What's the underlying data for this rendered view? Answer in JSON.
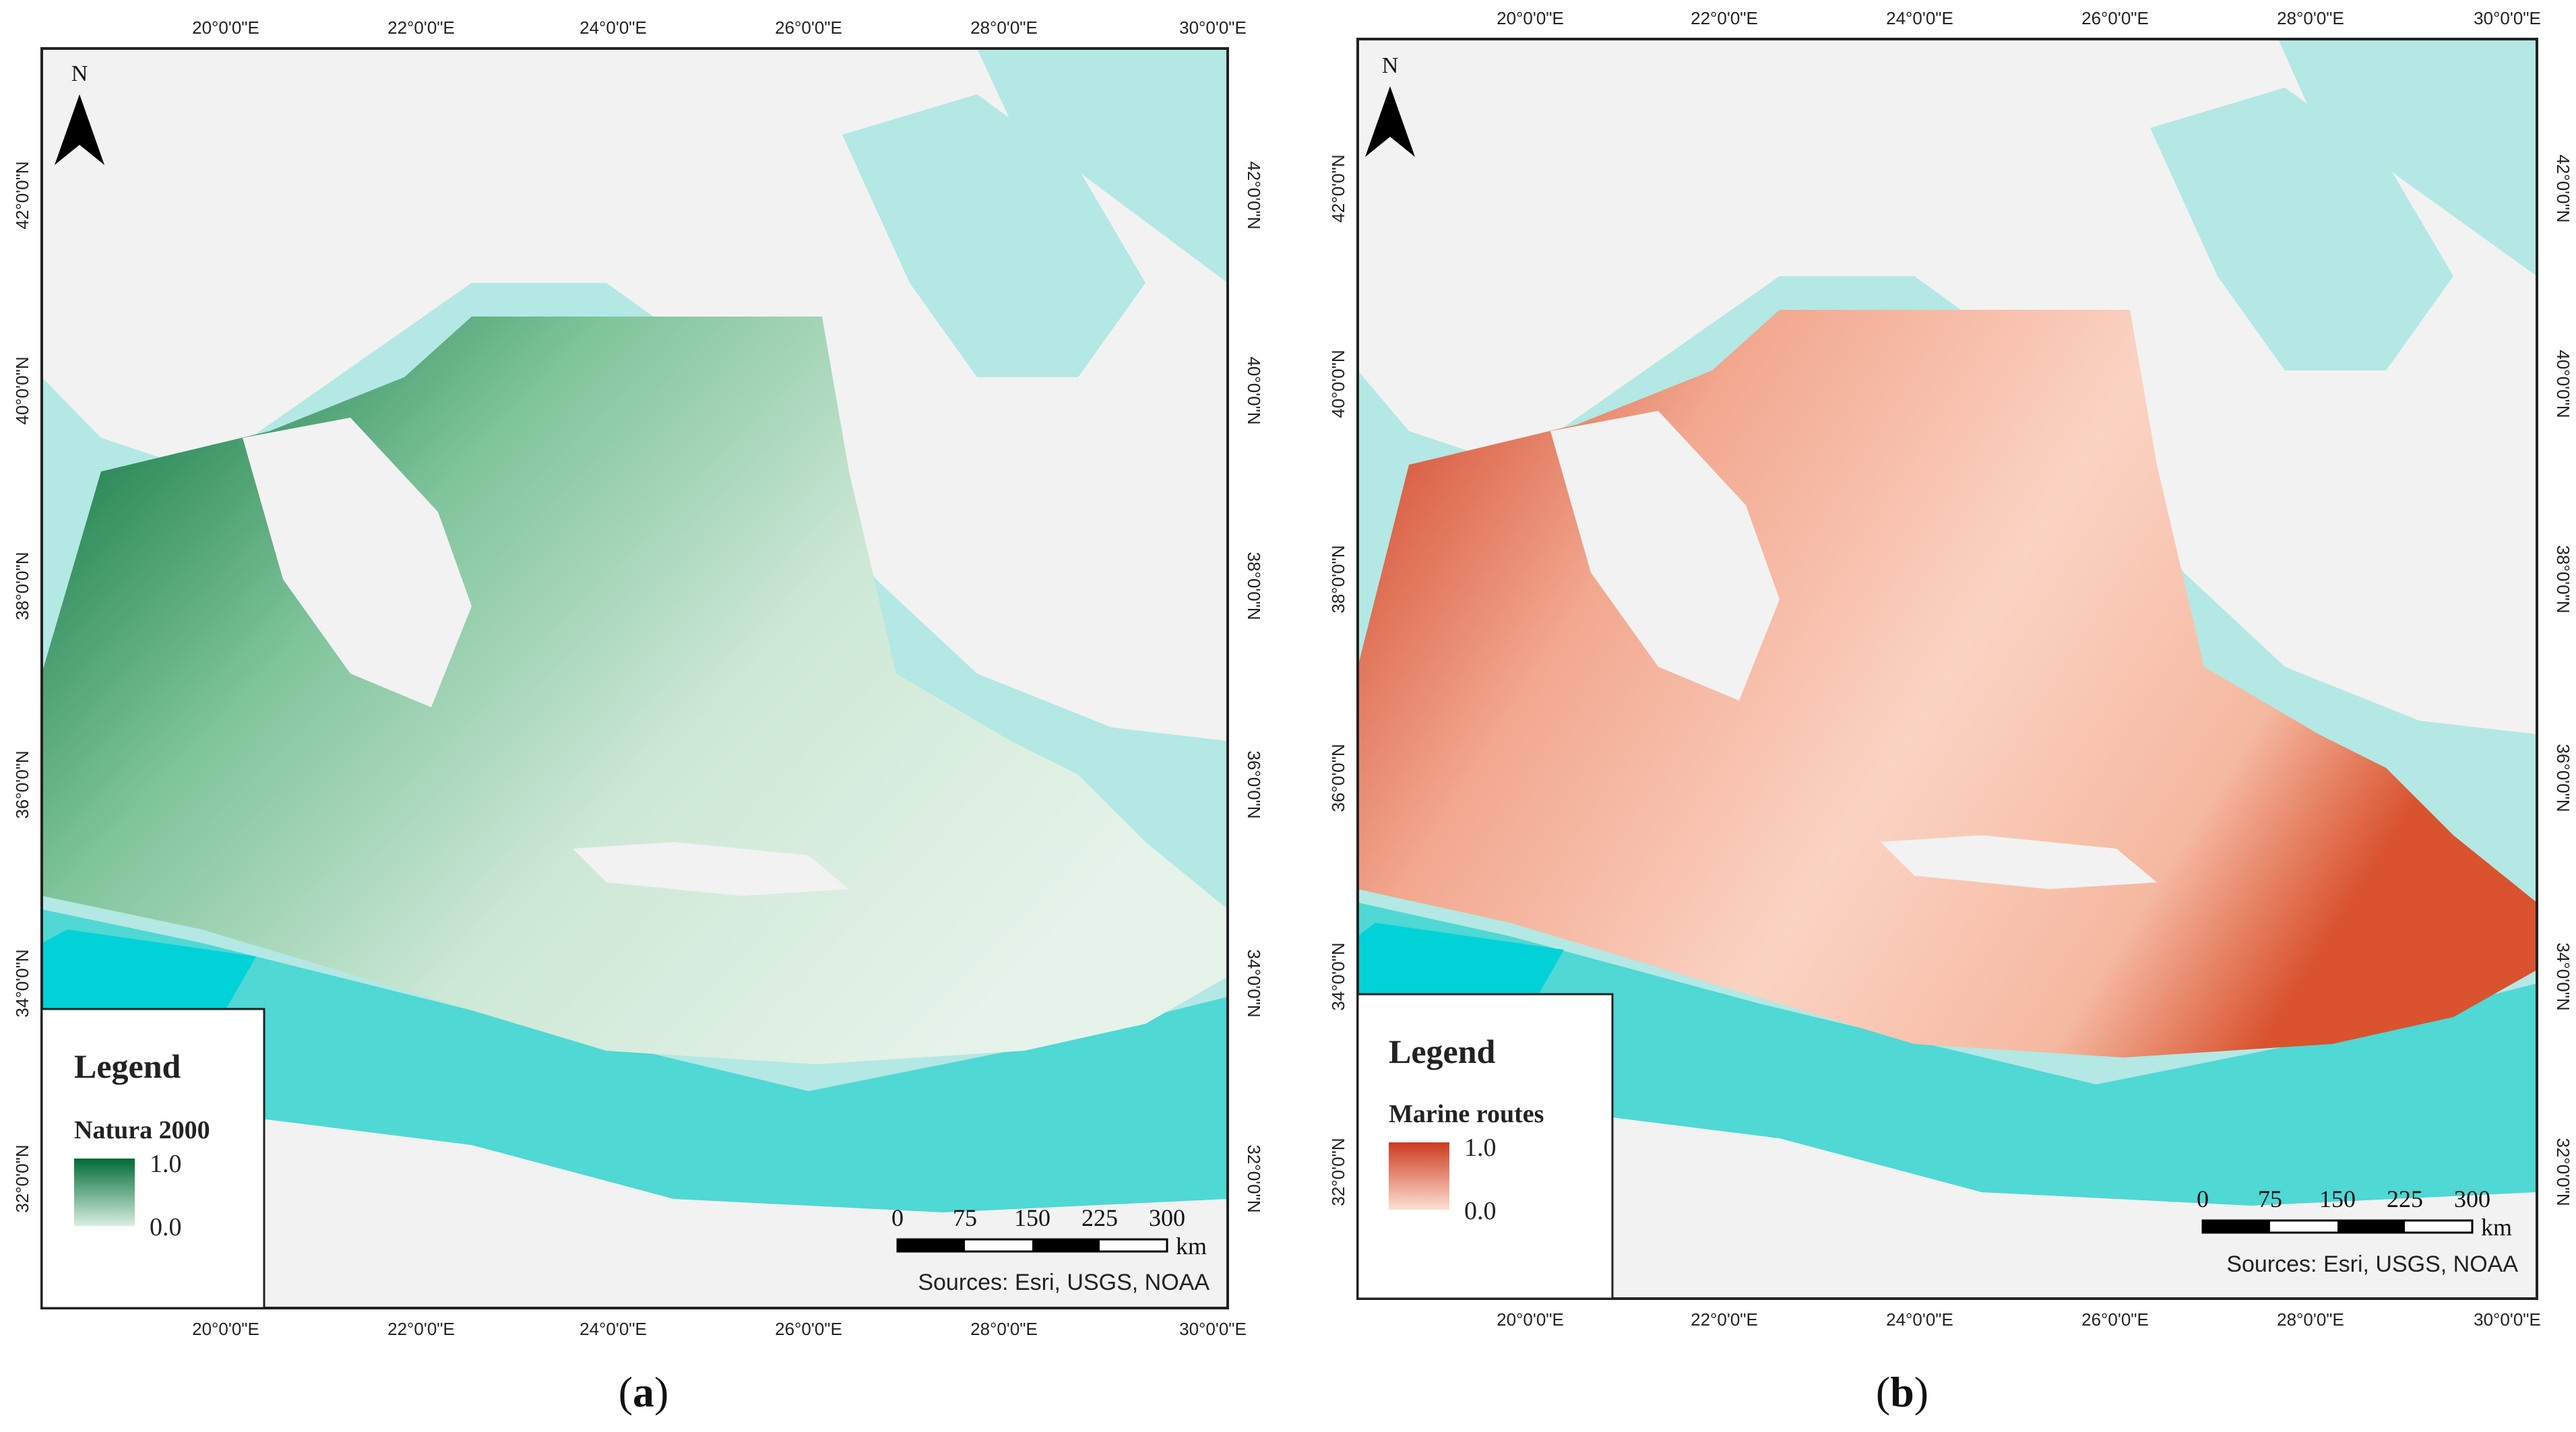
{
  "panels": [
    {
      "id": "a",
      "caption_open": "(",
      "caption_letter": "a",
      "caption_close": ")",
      "legend_title": "Legend",
      "layer_name": "Natura 2000",
      "value_high": "1.0",
      "value_low": "0.0",
      "ramp_colors": [
        "#006b35",
        "#d8eee0"
      ],
      "scale_labels": [
        "0",
        "75",
        "150",
        "225",
        "300"
      ],
      "scale_unit": "km",
      "sources": "Sources: Esri, USGS, NOAA",
      "north_label": "N",
      "x_ticks": [
        "20°0'0\"E",
        "22°0'0\"E",
        "24°0'0\"E",
        "26°0'0\"E",
        "28°0'0\"E",
        "30°0'0\"E"
      ],
      "y_ticks": [
        "42°0'0\"N",
        "40°0'0\"N",
        "38°0'0\"N",
        "36°0'0\"N",
        "34°0'0\"N",
        "32°0'0\"N"
      ]
    },
    {
      "id": "b",
      "caption_open": "(",
      "caption_letter": "b",
      "caption_close": ")",
      "legend_title": "Legend",
      "layer_name": "Marine routes",
      "value_high": "1.0",
      "value_low": "0.0",
      "ramp_colors": [
        "#cc3b1f",
        "#fde0d2"
      ],
      "scale_labels": [
        "0",
        "75",
        "150",
        "225",
        "300"
      ],
      "scale_unit": "km",
      "sources": "Sources: Esri, USGS, NOAA",
      "north_label": "N",
      "x_ticks": [
        "20°0'0\"E",
        "22°0'0\"E",
        "24°0'0\"E",
        "26°0'0\"E",
        "28°0'0\"E",
        "30°0'0\"E"
      ],
      "y_ticks": [
        "42°0'0\"N",
        "40°0'0\"N",
        "38°0'0\"N",
        "36°0'0\"N",
        "34°0'0\"N",
        "32°0'0\"N"
      ]
    }
  ],
  "colors": {
    "sea_deep": "#4fd8d4",
    "sea_shallow": "#b3e8e4",
    "sea_bright": "#00d2d8",
    "land": "#f2f2f2",
    "frame": "#222222"
  }
}
